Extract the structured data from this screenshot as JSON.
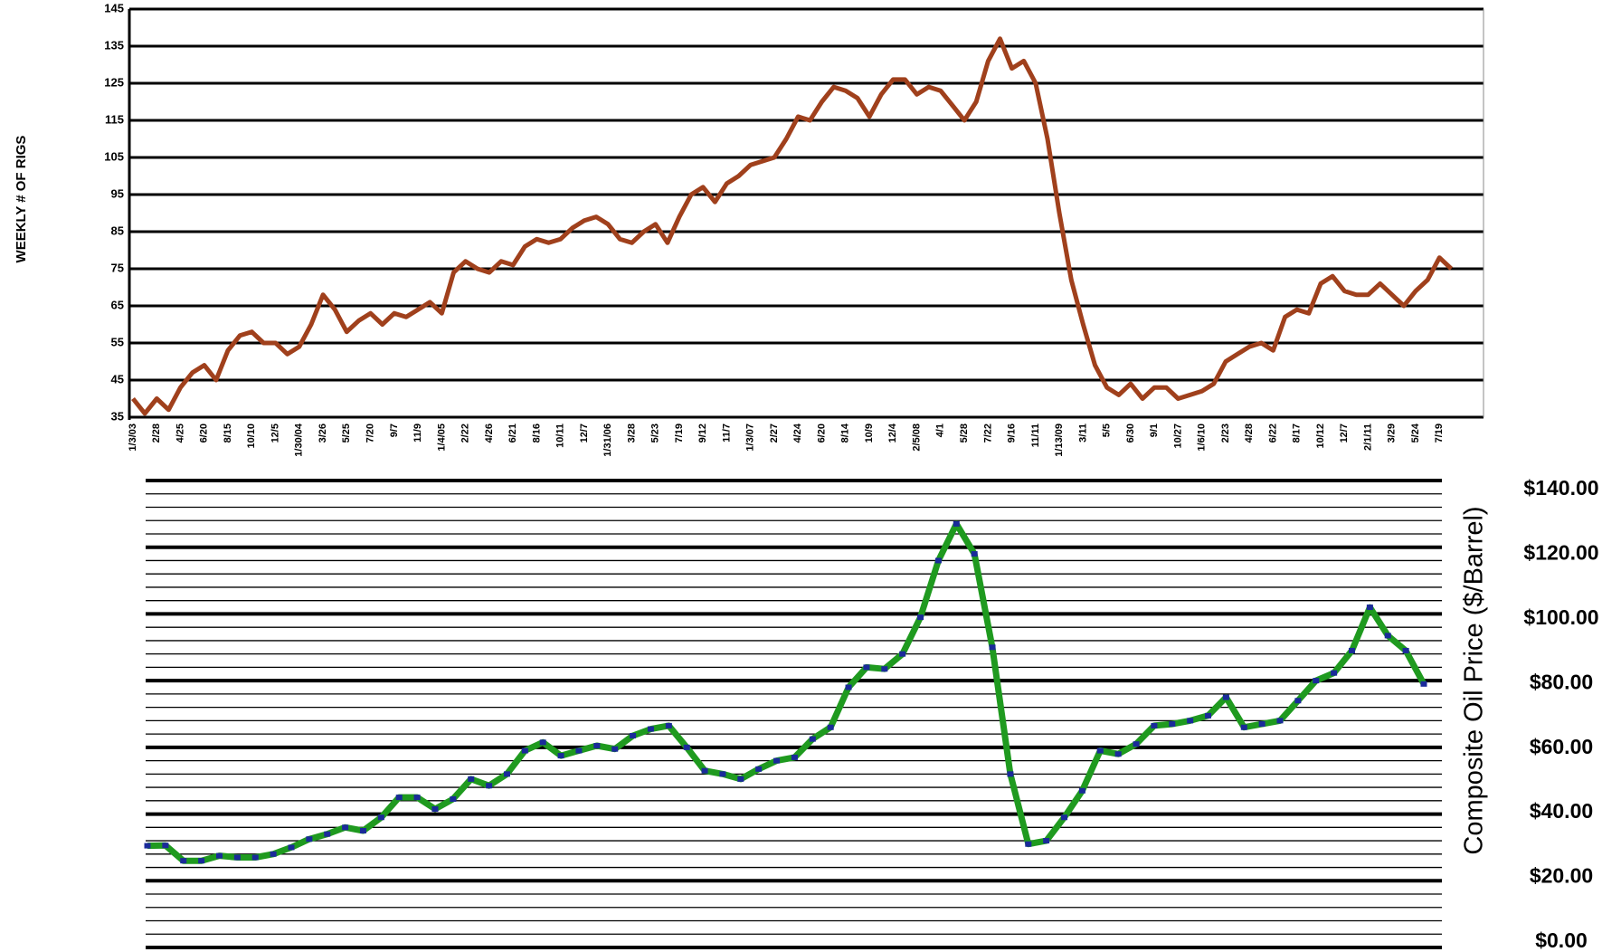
{
  "chart_data": [
    {
      "type": "line",
      "ylabel": "WEEKLY # OF RIGS",
      "color": "#a0401c",
      "categories": [
        "1/3/03",
        null,
        "2/28",
        null,
        "4/25",
        null,
        "6/20",
        null,
        "8/15",
        null,
        "10/10",
        null,
        "12/5",
        null,
        "1/30/04",
        null,
        "3/26",
        null,
        "5/25",
        null,
        "7/20",
        null,
        "9/7",
        null,
        "11/9",
        null,
        "1/4/05",
        null,
        "2/22",
        null,
        "4/26",
        null,
        "6/21",
        null,
        "8/16",
        null,
        "10/11",
        null,
        "12/7",
        null,
        "1/31/06",
        null,
        "3/28",
        null,
        "5/23",
        null,
        "7/19",
        null,
        "9/12",
        null,
        "11/7",
        null,
        "1/3/07",
        null,
        "2/27",
        null,
        "4/24",
        null,
        "6/20",
        null,
        "8/14",
        null,
        "10/9",
        null,
        "12/4",
        null,
        "2/5/08",
        null,
        "4/1",
        null,
        "5/28",
        null,
        "7/22",
        null,
        "9/16",
        null,
        "11/11",
        null,
        "1/13/09",
        null,
        "3/11",
        null,
        "5/5",
        null,
        "6/30",
        null,
        "9/1",
        null,
        "10/27",
        null,
        "1/6/10",
        null,
        "2/23",
        null,
        "4/28",
        null,
        "6/22",
        null,
        "8/17",
        null,
        "10/12",
        null,
        "12/7",
        null,
        "2/1/11",
        null,
        "3/29",
        null,
        "5/24",
        null,
        "7/19",
        null
      ],
      "values": [
        40,
        36,
        40,
        37,
        43,
        47,
        49,
        45,
        53,
        57,
        58,
        55,
        55,
        52,
        54,
        60,
        68,
        64,
        58,
        61,
        63,
        60,
        63,
        62,
        64,
        66,
        63,
        74,
        77,
        75,
        74,
        77,
        76,
        81,
        83,
        82,
        83,
        86,
        88,
        89,
        87,
        83,
        82,
        85,
        87,
        82,
        89,
        95,
        97,
        93,
        98,
        100,
        103,
        104,
        105,
        110,
        116,
        115,
        120,
        124,
        123,
        121,
        116,
        122,
        126,
        126,
        122,
        124,
        123,
        119,
        115,
        120,
        131,
        137,
        129,
        131,
        125,
        110,
        90,
        72,
        60,
        49,
        43,
        41,
        44,
        40,
        43,
        43,
        40,
        41,
        42,
        44,
        50,
        52,
        54,
        55,
        53,
        62,
        64,
        63,
        71,
        73,
        69,
        68,
        68,
        71,
        68,
        65,
        69,
        72,
        78,
        75
      ],
      "ylim": [
        35,
        145
      ],
      "yticks": [
        35,
        45,
        55,
        65,
        75,
        85,
        95,
        105,
        115,
        125,
        135,
        145
      ],
      "grid": true
    },
    {
      "type": "line",
      "ylabel": "Composite Oil Price ($/Barrel)",
      "color": "#1f9a1f",
      "marker_color": "#1a2a9a",
      "y_axis_side": "right",
      "values": [
        30.5,
        30.6,
        26,
        26,
        27.5,
        27,
        27,
        28,
        30,
        32.5,
        34,
        36,
        35,
        39,
        45,
        45,
        41.5,
        44.5,
        50.5,
        48.5,
        52,
        59,
        61.5,
        57.5,
        59,
        60.5,
        59.5,
        63.5,
        65.5,
        66.5,
        60,
        53,
        52,
        50.5,
        53.5,
        56,
        57,
        62.5,
        66,
        78,
        84,
        83.5,
        88,
        99,
        116,
        127,
        118,
        90,
        52,
        31,
        32,
        39,
        47,
        59,
        58,
        61,
        66.5,
        67,
        68,
        69.5,
        75,
        66,
        67,
        68,
        74,
        80,
        82.3,
        89,
        102,
        93.5,
        89,
        79
      ],
      "ylim": [
        0,
        140
      ],
      "yticks": [
        {
          "value": 0,
          "label": "$0.00"
        },
        {
          "value": 20,
          "label": "$20.00"
        },
        {
          "value": 40,
          "label": "$40.00"
        },
        {
          "value": 60,
          "label": "$60.00"
        },
        {
          "value": 80,
          "label": "$80.00"
        },
        {
          "value": 100,
          "label": "$100.00"
        },
        {
          "value": 120,
          "label": "$120.00"
        },
        {
          "value": 140,
          "label": "$140.00"
        }
      ],
      "minor_yticks": [
        4,
        8,
        12,
        16,
        24,
        28,
        32,
        36,
        44,
        48,
        52,
        56,
        64,
        68,
        72,
        76,
        84,
        88,
        92,
        96,
        104,
        108,
        112,
        116,
        124,
        128,
        132,
        136
      ],
      "grid": true
    }
  ]
}
